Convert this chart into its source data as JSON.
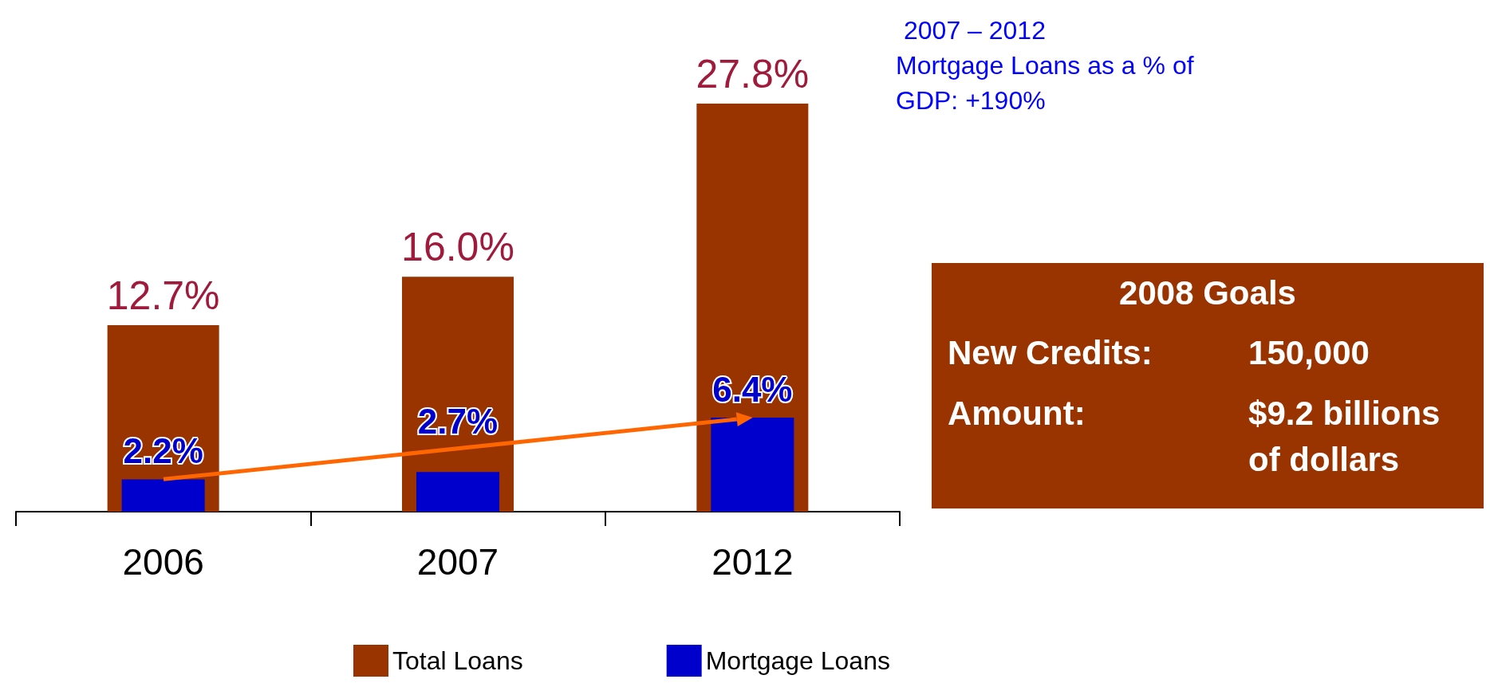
{
  "chart_data": {
    "type": "bar",
    "categories": [
      "2006",
      "2007",
      "2012"
    ],
    "series": [
      {
        "name": "Total Loans",
        "color": "#993300",
        "values": [
          12.7,
          16.0,
          27.8
        ],
        "value_labels": [
          "12.7%",
          "16.0%",
          "27.8%"
        ]
      },
      {
        "name": "Mortgage Loans",
        "color": "#0000cc",
        "values": [
          2.2,
          2.7,
          6.4
        ],
        "value_labels": [
          "2.2%",
          "2.7%",
          "6.4%"
        ]
      }
    ],
    "legend": "bottom",
    "grid": false,
    "annotations": [
      "2007 – 2012",
      "Mortgage Loans as a % of GDP: +190%",
      "2008 Goals",
      "New Credits:",
      "150,000",
      "Amount:",
      "$9.2 billions of dollars"
    ]
  }
}
